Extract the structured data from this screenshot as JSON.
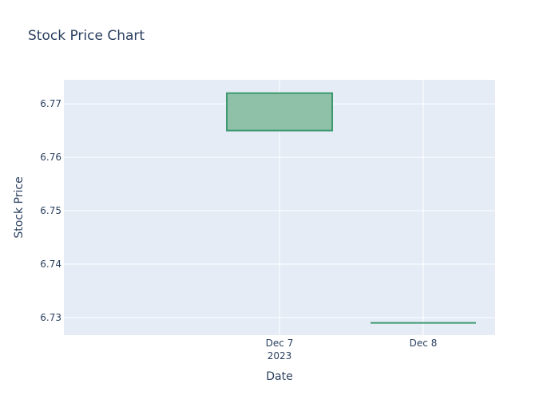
{
  "chart_data": {
    "type": "candlestick",
    "title": "Stock Price Chart",
    "xlabel": "Date",
    "ylabel": "Stock Price",
    "x_tick_labels": [
      {
        "date": "2023-12-07",
        "label": "Dec 7",
        "sublabel": "2023"
      },
      {
        "date": "2023-12-08",
        "label": "Dec 8",
        "sublabel": ""
      }
    ],
    "y_ticks": [
      6.73,
      6.74,
      6.75,
      6.76,
      6.77
    ],
    "y_tick_labels": [
      "6.73",
      "6.74",
      "6.75",
      "6.76",
      "6.77"
    ],
    "xlim": [
      "2023-12-06T00:00",
      "2023-12-09T00:00"
    ],
    "ylim": [
      6.7267,
      6.7745
    ],
    "grid": true,
    "legend": "none",
    "background": "#e5ecf6",
    "increasing_color": "#3d9970",
    "increasing_fill": "#8fc1a9",
    "decreasing_color": "#ff4136",
    "candles": [
      {
        "date": "2023-12-07",
        "open": 6.765,
        "high": 6.772,
        "low": 6.765,
        "close": 6.772
      },
      {
        "date": "2023-12-08",
        "open": 6.729,
        "high": 6.729,
        "low": 6.729,
        "close": 6.729
      }
    ]
  }
}
